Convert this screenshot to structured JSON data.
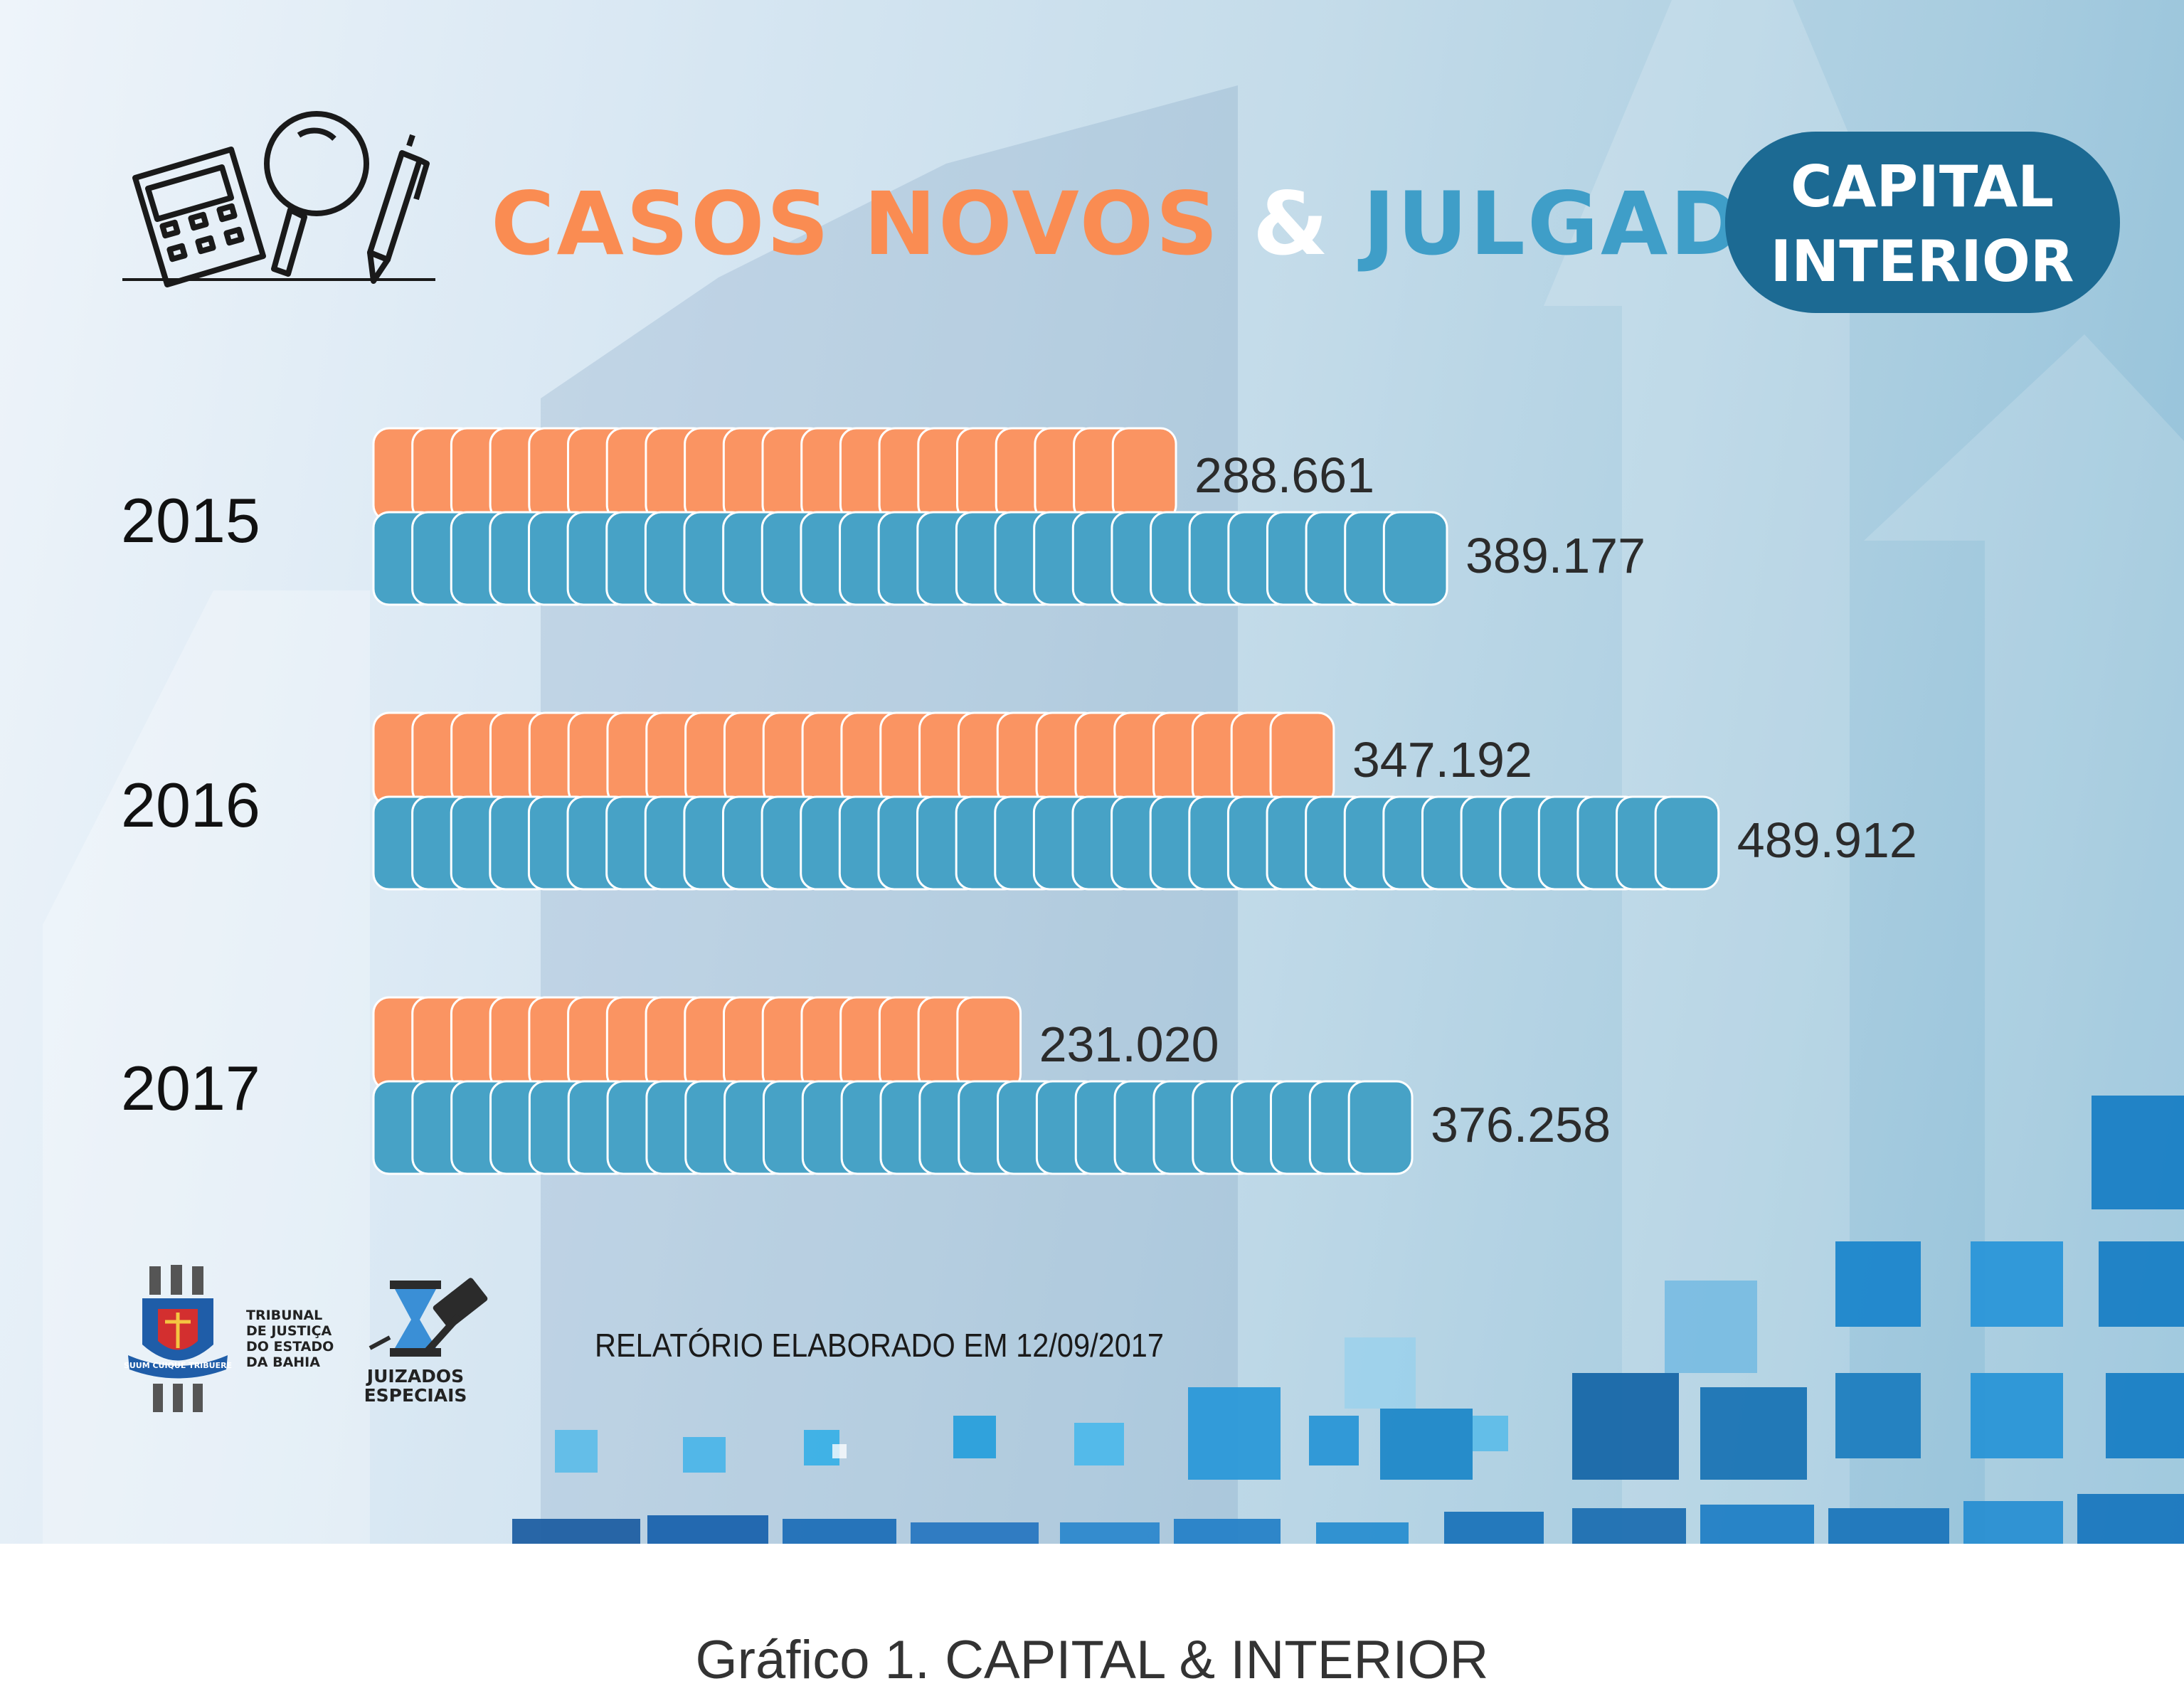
{
  "title": {
    "part1": "CASOS NOVOS",
    "amp": "&",
    "part2": "JULGADOS",
    "part1_color": "#fa8c52",
    "part2_color": "#3f9ec8"
  },
  "badge": {
    "line1": "CAPITAL",
    "line2": "INTERIOR",
    "color": "#1c6a93"
  },
  "icons": [
    "calculator-icon",
    "magnifier-icon",
    "pen-icon"
  ],
  "footer": {
    "tj_name": [
      "TRIBUNAL",
      "DE JUSTIÇA",
      "DO ESTADO",
      "DA BAHIA"
    ],
    "tj_motto": "SUUM CUIQUE TRIBUERE",
    "je_name": [
      "JUIZADOS",
      "ESPECIAIS"
    ],
    "report": "RELATÓRIO ELABORADO EM 12/09/2017"
  },
  "caption": "Gráfico 1. CAPITAL & INTERIOR",
  "chart_data": {
    "type": "bar",
    "orientation": "horizontal",
    "categories": [
      "2015",
      "2016",
      "2017"
    ],
    "series": [
      {
        "values": [
          288661,
          347192,
          231020
        ],
        "labels": [
          "288.661",
          "347.192",
          "231.020"
        ],
        "color": "#fa9462"
      },
      {
        "values": [
          389177,
          489912,
          376258
        ],
        "labels": [
          "389.177",
          "489.912",
          "376.258"
        ],
        "color": "#47a2c6"
      }
    ],
    "xlim": [
      0,
      500000
    ],
    "grid": false,
    "legend": "none"
  }
}
